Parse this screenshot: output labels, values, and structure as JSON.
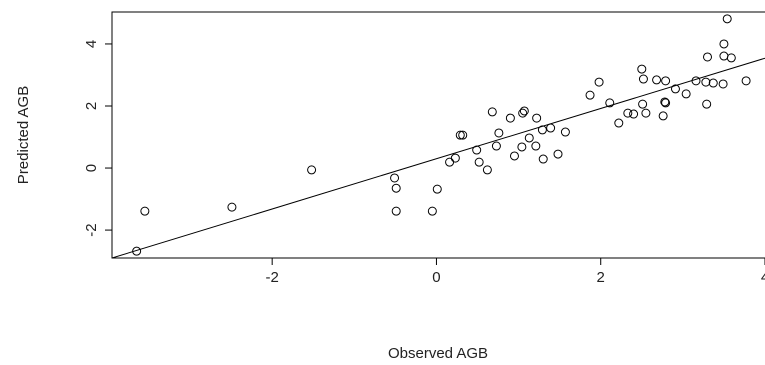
{
  "chart_data": {
    "type": "scatter",
    "x_label": "Observed AGB",
    "y_label": "Predicted AGB",
    "x": [
      -3.65,
      -3.55,
      -2.49,
      -1.52,
      -0.51,
      -0.49,
      -0.49,
      -0.05,
      0.01,
      0.16,
      0.23,
      0.29,
      0.32,
      0.49,
      0.52,
      0.62,
      0.68,
      0.73,
      0.76,
      0.9,
      0.95,
      1.04,
      1.05,
      1.07,
      1.13,
      1.21,
      1.22,
      1.29,
      1.3,
      1.39,
      1.48,
      1.57,
      1.87,
      1.98,
      2.11,
      2.22,
      2.33,
      2.4,
      2.5,
      2.51,
      2.52,
      2.55,
      2.68,
      2.76,
      2.78,
      2.79,
      2.79,
      2.91,
      3.04,
      3.16,
      3.28,
      3.29,
      3.3,
      3.37,
      3.49,
      3.5,
      3.54,
      3.5,
      3.59,
      3.77
    ],
    "y": [
      -2.68,
      -1.39,
      -1.26,
      -0.06,
      -0.32,
      -0.65,
      -1.39,
      -1.39,
      -0.68,
      0.19,
      0.32,
      1.06,
      1.06,
      0.58,
      0.19,
      -0.06,
      1.81,
      0.71,
      1.13,
      1.61,
      0.39,
      0.68,
      1.77,
      1.84,
      0.97,
      0.71,
      1.61,
      1.23,
      0.29,
      1.29,
      0.45,
      1.16,
      2.35,
      2.77,
      2.1,
      1.45,
      1.77,
      1.74,
      3.19,
      2.06,
      2.87,
      1.77,
      2.84,
      1.68,
      2.13,
      2.1,
      2.81,
      2.55,
      2.39,
      2.81,
      2.77,
      2.06,
      3.58,
      2.74,
      2.71,
      4.0,
      4.81,
      3.61,
      3.55,
      2.81
    ],
    "xlim": [
      -3.95,
      4.0
    ],
    "ylim": [
      -2.9,
      5.03
    ],
    "xticks": [
      -2,
      0,
      2,
      4
    ],
    "yticks": [
      -2,
      0,
      2,
      4
    ],
    "fit": {
      "intercept": 0.3,
      "slope": 0.81
    },
    "color": "#000000"
  }
}
